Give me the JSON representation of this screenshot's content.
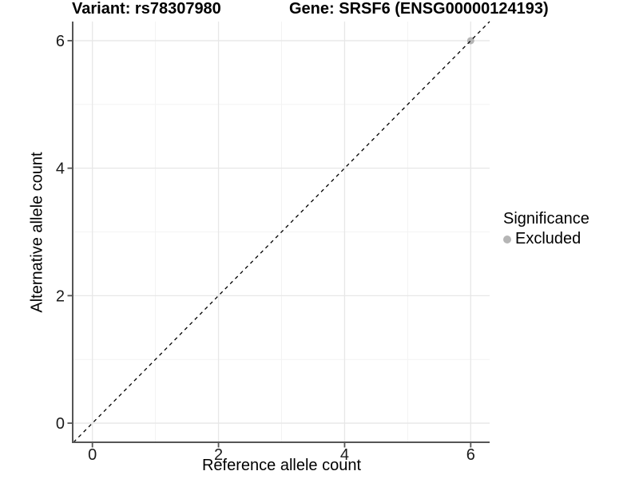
{
  "figure": {
    "titles": {
      "left": "Variant: rs78307980",
      "right": "Gene: SRSF6 (ENSG00000124193)"
    },
    "x_axis": {
      "label": "Reference allele count"
    },
    "y_axis": {
      "label": "Alternative allele count"
    },
    "legend": {
      "title": "Significance",
      "items": [
        {
          "label": "Excluded",
          "color": "#b5b5b5",
          "marker": "circle"
        }
      ]
    }
  },
  "chart_data": {
    "type": "scatter",
    "title": "Variant: rs78307980 | Gene: SRSF6 (ENSG00000124193)",
    "xlabel": "Reference allele count",
    "ylabel": "Alternative allele count",
    "xlim": [
      -0.3,
      6.3
    ],
    "ylim": [
      -0.3,
      6.3
    ],
    "xticks": [
      0,
      2,
      4,
      6
    ],
    "yticks": [
      0,
      2,
      4,
      6
    ],
    "minor_xticks": [
      1,
      3,
      5
    ],
    "minor_yticks": [
      1,
      3,
      5
    ],
    "grid": "major and minor, light gray on white panel",
    "legend_position": "right",
    "series": [
      {
        "name": "Excluded",
        "color": "#b5b5b5",
        "points": [
          [
            6,
            6
          ]
        ]
      }
    ],
    "reference_line": {
      "kind": "identity y=x",
      "style": "dashed",
      "color": "#000000"
    },
    "style": {
      "panel_bg": "#ffffff",
      "grid_major_color": "#e7e7e7",
      "grid_minor_color": "#f3f3f3",
      "axis_line_color": "#555555",
      "tick_label_color": "#1a1a1a"
    }
  }
}
